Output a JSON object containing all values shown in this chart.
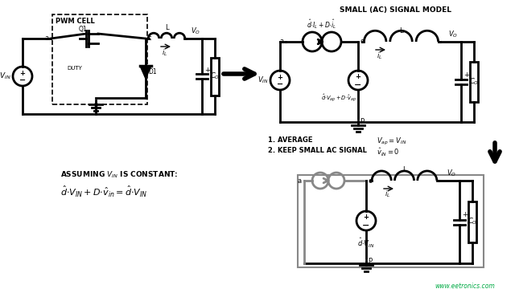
{
  "bg_white": "#ffffff",
  "line_color": "#000000",
  "gray_color": "#888888",
  "green_color": "#00aa44",
  "title_tr": "SMALL (AC) SIGNAL MODEL",
  "title_tl": "PWM CELL",
  "watermark": "www.eetronics.com"
}
